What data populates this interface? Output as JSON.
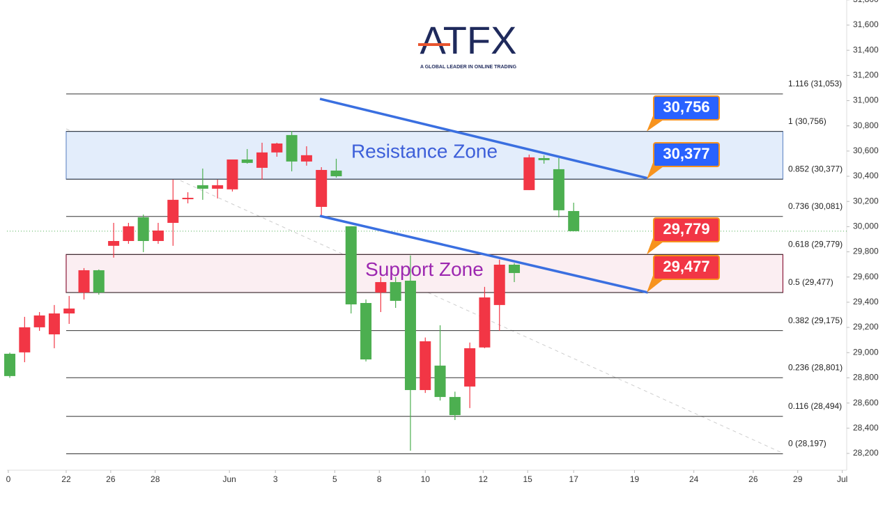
{
  "logo": {
    "name": "ATFX",
    "tagline": "A GLOBAL LEADER IN ONLINE TRADING"
  },
  "chart_data": {
    "type": "candlestick",
    "up_color": "#f23645",
    "down_color": "#4caf50",
    "x": [
      0,
      1,
      2,
      3,
      4,
      5,
      6,
      7,
      8,
      9,
      10,
      11,
      12,
      13,
      14,
      15,
      16,
      17,
      18,
      19,
      20,
      21,
      22,
      23,
      24,
      25,
      26,
      27,
      28,
      29,
      30,
      31,
      32,
      33,
      34,
      35,
      36,
      37,
      38
    ],
    "open": [
      28991,
      29002,
      29201,
      29145,
      29311,
      29477,
      29654,
      29848,
      29886,
      30074,
      29886,
      30030,
      30218,
      30329,
      30301,
      30296,
      30533,
      30467,
      30589,
      30727,
      30517,
      30157,
      30445,
      30003,
      29394,
      29477,
      29560,
      29571,
      28703,
      28897,
      28648,
      28731,
      29041,
      29378,
      29698,
      30290,
      30544,
      30456,
      30124
    ],
    "high": [
      29000,
      29284,
      29322,
      29378,
      29450,
      29671,
      29660,
      30030,
      30030,
      30096,
      30030,
      30373,
      30273,
      30461,
      30373,
      30533,
      30616,
      30666,
      30666,
      30760,
      30638,
      30472,
      30539,
      30003,
      29422,
      29600,
      29600,
      29771,
      29120,
      29217,
      28690,
      29080,
      29522,
      29738,
      29710,
      30572,
      30566,
      30544,
      30190
    ],
    "low": [
      28800,
      28924,
      29173,
      29035,
      29228,
      29422,
      29460,
      29754,
      29864,
      29798,
      29864,
      29848,
      30185,
      30213,
      30224,
      30279,
      30500,
      30373,
      30555,
      30439,
      30484,
      30085,
      30389,
      29311,
      28930,
      29322,
      29355,
      28222,
      28680,
      28620,
      28465,
      28560,
      29035,
      29173,
      29560,
      30290,
      30500,
      30074,
      29964
    ],
    "close": [
      28814,
      29201,
      29295,
      29311,
      29350,
      29654,
      29477,
      29886,
      30003,
      29886,
      29969,
      30213,
      30229,
      30301,
      30329,
      30533,
      30506,
      30589,
      30660,
      30517,
      30567,
      30450,
      30400,
      29383,
      28946,
      29560,
      29411,
      28703,
      29090,
      28648,
      28504,
      29035,
      29438,
      29698,
      29632,
      30550,
      30528,
      30130,
      29964
    ],
    "xlim": [
      -0.19,
      56.4
    ],
    "xticks": [
      {
        "value": -0.1,
        "label": "0"
      },
      {
        "value": 3.8,
        "label": "22"
      },
      {
        "value": 6.8,
        "label": "26"
      },
      {
        "value": 9.8,
        "label": "28"
      },
      {
        "value": 14.8,
        "label": "Jun"
      },
      {
        "value": 17.9,
        "label": "3"
      },
      {
        "value": 21.9,
        "label": "5"
      },
      {
        "value": 24.9,
        "label": "8"
      },
      {
        "value": 28.0,
        "label": "10"
      },
      {
        "value": 31.9,
        "label": "12"
      },
      {
        "value": 34.9,
        "label": "15"
      },
      {
        "value": 38.0,
        "label": "17"
      },
      {
        "value": 42.1,
        "label": "19"
      },
      {
        "value": 46.1,
        "label": "24"
      },
      {
        "value": 50.1,
        "label": "26"
      },
      {
        "value": 53.1,
        "label": "29"
      },
      {
        "value": 56.1,
        "label": "Jul"
      }
    ],
    "ylim": [
      28067,
      31799
    ],
    "yticks": [
      {
        "value": 28200,
        "label": "28,200"
      },
      {
        "value": 28400,
        "label": "28,400"
      },
      {
        "value": 28600,
        "label": "28,600"
      },
      {
        "value": 28800,
        "label": "28,800"
      },
      {
        "value": 29000,
        "label": "29,000"
      },
      {
        "value": 29200,
        "label": "29,200"
      },
      {
        "value": 29400,
        "label": "29,400"
      },
      {
        "value": 29600,
        "label": "29,600"
      },
      {
        "value": 29800,
        "label": "29,800"
      },
      {
        "value": 30000,
        "label": "30,000"
      },
      {
        "value": 30200,
        "label": "30,200"
      },
      {
        "value": 30400,
        "label": "30,400"
      },
      {
        "value": 30600,
        "label": "30,600"
      },
      {
        "value": 30800,
        "label": "30,800"
      },
      {
        "value": 31000,
        "label": "31,000"
      },
      {
        "value": 31200,
        "label": "31,200"
      },
      {
        "value": 31400,
        "label": "31,400"
      },
      {
        "value": 31600,
        "label": "31,600"
      },
      {
        "value": 31800,
        "label": "31,800"
      }
    ],
    "fib_range": [
      3.8,
      52.1
    ],
    "levels": [
      {
        "value": 31053,
        "label": "1.116 (31,053)"
      },
      {
        "value": 30756,
        "label": "1 (30,756)"
      },
      {
        "value": 30377,
        "label": "0.852 (30,377)"
      },
      {
        "value": 30081,
        "label": "0.736 (30,081)"
      },
      {
        "value": 29779,
        "label": "0.618 (29,779)"
      },
      {
        "value": 29477,
        "label": "0.5 (29,477)"
      },
      {
        "value": 29175,
        "label": "0.382 (29,175)"
      },
      {
        "value": 28801,
        "label": "0.236 (28,801)"
      },
      {
        "value": 28494,
        "label": "0.116 (28,494)"
      },
      {
        "value": 28197,
        "label": "0 (28,197)"
      }
    ],
    "zones": [
      {
        "name": "Resistance Zone",
        "range": [
          30377,
          30756
        ],
        "fill": "#e3edfb",
        "border": "#6d8fc9",
        "text_color": "#3d5fd9"
      },
      {
        "name": "Support Zone",
        "range": [
          29477,
          29779
        ],
        "fill": "#fbeef2",
        "border": "#8b1a3a",
        "text_color": "#9c27b0"
      }
    ],
    "trendlines": [
      {
        "x": [
          20.9,
          43.0
        ],
        "y": [
          31014,
          30384
        ],
        "color": "#3a6fe0"
      },
      {
        "x": [
          20.9,
          43.0
        ],
        "y": [
          30085,
          29477
        ],
        "color": "#3a6fe0"
      }
    ],
    "callouts": [
      {
        "value": 30756,
        "label": "30,756",
        "color": "#2962ff"
      },
      {
        "value": 30377,
        "label": "30,377",
        "color": "#2962ff"
      },
      {
        "value": 29779,
        "label": "29,779",
        "color": "#f23645"
      },
      {
        "value": 29477,
        "label": "29,477",
        "color": "#f23645"
      }
    ]
  }
}
